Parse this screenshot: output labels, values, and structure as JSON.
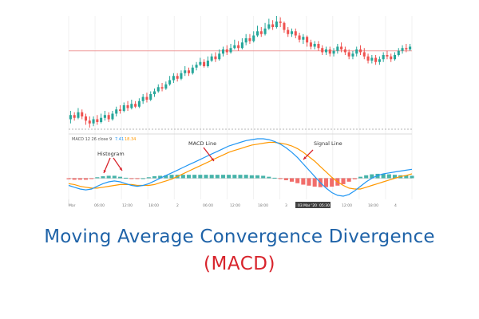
{
  "caption": {
    "line1": "Moving Average Convergence Divergence",
    "line2": "(MACD)",
    "line1_color": "#1f63a8",
    "line2_color": "#d8242c"
  },
  "chart_data": {
    "type": "line",
    "price_panel": {
      "candles": [
        [
          25,
          28,
          31,
          22
        ],
        [
          28,
          26,
          30,
          24
        ],
        [
          26,
          30,
          33,
          25
        ],
        [
          30,
          27,
          32,
          25
        ],
        [
          27,
          24,
          29,
          21
        ],
        [
          24,
          22,
          27,
          19
        ],
        [
          22,
          25,
          27,
          20
        ],
        [
          25,
          23,
          28,
          21
        ],
        [
          23,
          26,
          29,
          22
        ],
        [
          26,
          28,
          31,
          24
        ],
        [
          28,
          25,
          30,
          23
        ],
        [
          25,
          29,
          31,
          24
        ],
        [
          29,
          32,
          34,
          27
        ],
        [
          32,
          31,
          35,
          29
        ],
        [
          31,
          35,
          37,
          30
        ],
        [
          35,
          33,
          38,
          31
        ],
        [
          33,
          36,
          39,
          32
        ],
        [
          36,
          34,
          38,
          33
        ],
        [
          34,
          38,
          40,
          33
        ],
        [
          38,
          41,
          43,
          36
        ],
        [
          41,
          39,
          44,
          37
        ],
        [
          39,
          43,
          45,
          38
        ],
        [
          43,
          45,
          47,
          41
        ],
        [
          45,
          48,
          50,
          44
        ],
        [
          48,
          47,
          51,
          45
        ],
        [
          47,
          50,
          52,
          46
        ],
        [
          50,
          53,
          56,
          49
        ],
        [
          53,
          56,
          58,
          51
        ],
        [
          56,
          54,
          58,
          52
        ],
        [
          54,
          58,
          60,
          53
        ],
        [
          58,
          60,
          63,
          56
        ],
        [
          60,
          58,
          62,
          56
        ],
        [
          58,
          62,
          64,
          57
        ],
        [
          62,
          64,
          66,
          60
        ],
        [
          64,
          66,
          69,
          63
        ],
        [
          66,
          63,
          68,
          62
        ],
        [
          63,
          67,
          70,
          62
        ],
        [
          67,
          70,
          72,
          66
        ],
        [
          70,
          68,
          73,
          66
        ],
        [
          68,
          72,
          75,
          67
        ],
        [
          72,
          75,
          77,
          70
        ],
        [
          75,
          73,
          78,
          71
        ],
        [
          73,
          76,
          79,
          72
        ],
        [
          76,
          78,
          82,
          75
        ],
        [
          78,
          76,
          81,
          74
        ],
        [
          76,
          80,
          83,
          75
        ],
        [
          80,
          83,
          86,
          78
        ],
        [
          83,
          81,
          86,
          79
        ],
        [
          81,
          85,
          88,
          80
        ],
        [
          85,
          88,
          92,
          84
        ],
        [
          88,
          86,
          91,
          84
        ],
        [
          86,
          90,
          94,
          85
        ],
        [
          90,
          93,
          97,
          89
        ],
        [
          93,
          91,
          96,
          89
        ],
        [
          91,
          95,
          99,
          90
        ],
        [
          95,
          94,
          98,
          91
        ],
        [
          94,
          89,
          95,
          87
        ],
        [
          89,
          86,
          91,
          84
        ],
        [
          86,
          88,
          90,
          84
        ],
        [
          88,
          85,
          90,
          83
        ],
        [
          85,
          82,
          87,
          80
        ],
        [
          82,
          84,
          86,
          79
        ],
        [
          84,
          80,
          85,
          77
        ],
        [
          80,
          77,
          82,
          75
        ],
        [
          77,
          79,
          81,
          75
        ],
        [
          79,
          76,
          81,
          74
        ],
        [
          76,
          73,
          78,
          71
        ],
        [
          73,
          75,
          77,
          71
        ],
        [
          75,
          72,
          77,
          70
        ],
        [
          72,
          74,
          76,
          70
        ],
        [
          74,
          77,
          79,
          72
        ],
        [
          77,
          75,
          80,
          73
        ],
        [
          75,
          73,
          77,
          71
        ],
        [
          73,
          70,
          75,
          68
        ],
        [
          70,
          72,
          74,
          68
        ],
        [
          72,
          75,
          77,
          70
        ],
        [
          75,
          73,
          78,
          71
        ],
        [
          73,
          70,
          76,
          68
        ],
        [
          70,
          67,
          72,
          65
        ],
        [
          67,
          69,
          71,
          65
        ],
        [
          69,
          66,
          71,
          64
        ],
        [
          66,
          68,
          70,
          64
        ],
        [
          68,
          71,
          73,
          66
        ],
        [
          71,
          70,
          74,
          68
        ],
        [
          70,
          68,
          72,
          66
        ],
        [
          68,
          71,
          73,
          67
        ],
        [
          71,
          74,
          76,
          70
        ],
        [
          74,
          76,
          78,
          72
        ],
        [
          76,
          75,
          79,
          73
        ],
        [
          75,
          77,
          79,
          74
        ]
      ],
      "price_line": 74
    },
    "macd_panel": {
      "header": "MACD 12 26 close 9",
      "header_values": [
        "7.41",
        "18.34"
      ],
      "macd_line": [
        -8,
        -10,
        -12,
        -13,
        -12,
        -9,
        -6,
        -4,
        -3,
        -4,
        -6,
        -8,
        -9,
        -8,
        -6,
        -3,
        0,
        3,
        6,
        9,
        12,
        15,
        18,
        21,
        24,
        27,
        30,
        33,
        36,
        38,
        40,
        42,
        43,
        44,
        44,
        43,
        41,
        38,
        34,
        29,
        23,
        16,
        9,
        2,
        -5,
        -11,
        -16,
        -19,
        -20,
        -18,
        -14,
        -9,
        -4,
        0,
        3,
        5,
        6,
        7,
        8,
        9,
        10
      ],
      "signal_line": [
        -6,
        -7,
        -9,
        -10,
        -11,
        -11,
        -10,
        -9,
        -8,
        -7,
        -7,
        -7,
        -8,
        -8,
        -8,
        -7,
        -5,
        -3,
        -1,
        2,
        5,
        8,
        11,
        14,
        17,
        20,
        23,
        26,
        29,
        31,
        33,
        35,
        37,
        38,
        39,
        40,
        40,
        39,
        38,
        36,
        33,
        29,
        24,
        19,
        13,
        7,
        1,
        -4,
        -8,
        -11,
        -12,
        -12,
        -10,
        -8,
        -6,
        -4,
        -2,
        0,
        2,
        3,
        5
      ],
      "annotations": [
        "Histogram",
        "MACD Line",
        "Signal Line"
      ]
    },
    "x_tick_labels": [
      "Mar",
      "06:00",
      "12:00",
      "18:00",
      "2",
      "06:00",
      "12:00",
      "18:00",
      "3",
      "03 Mar '20",
      "05:30",
      "12:00",
      "18:00",
      "4"
    ],
    "colors": {
      "up": "#26a69a",
      "down": "#ef5350",
      "macd_line": "#2196f3",
      "signal_line": "#ff9800",
      "annotation": "#d8242c",
      "price_line": "#ef9a9a"
    }
  }
}
